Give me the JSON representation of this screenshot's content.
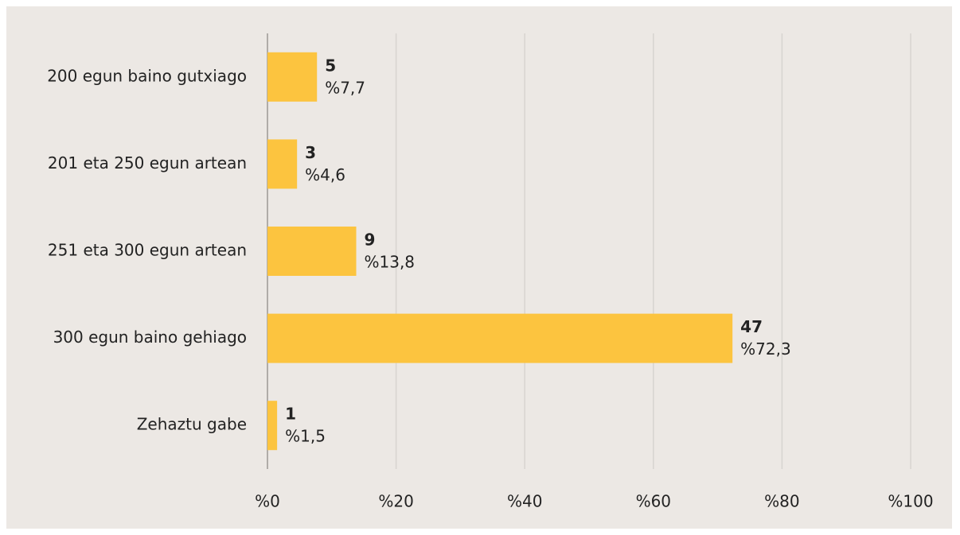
{
  "chart_data": {
    "type": "hbar",
    "categories": [
      "200 egun baino gutxiago",
      "201 eta 250 egun artean",
      "251 eta 300 egun artean",
      "300 egun baino gehiago",
      "Zehaztu gabe"
    ],
    "values": [
      7.7,
      4.6,
      13.8,
      72.3,
      1.5
    ],
    "value_labels": [
      "%7,7",
      "%4,6",
      "%13,8",
      "%72,3",
      "%1,5"
    ],
    "counts": [
      5,
      3,
      9,
      47,
      1
    ],
    "color": "#fcc43f",
    "xlim": [
      0,
      100
    ],
    "xticks": [
      {
        "value": 0,
        "label": "%0"
      },
      {
        "value": 20,
        "label": "%20"
      },
      {
        "value": 40,
        "label": "%40"
      },
      {
        "value": 60,
        "label": "%60"
      },
      {
        "value": 80,
        "label": "%80"
      },
      {
        "value": 100,
        "label": "%100"
      }
    ],
    "grid": true
  }
}
